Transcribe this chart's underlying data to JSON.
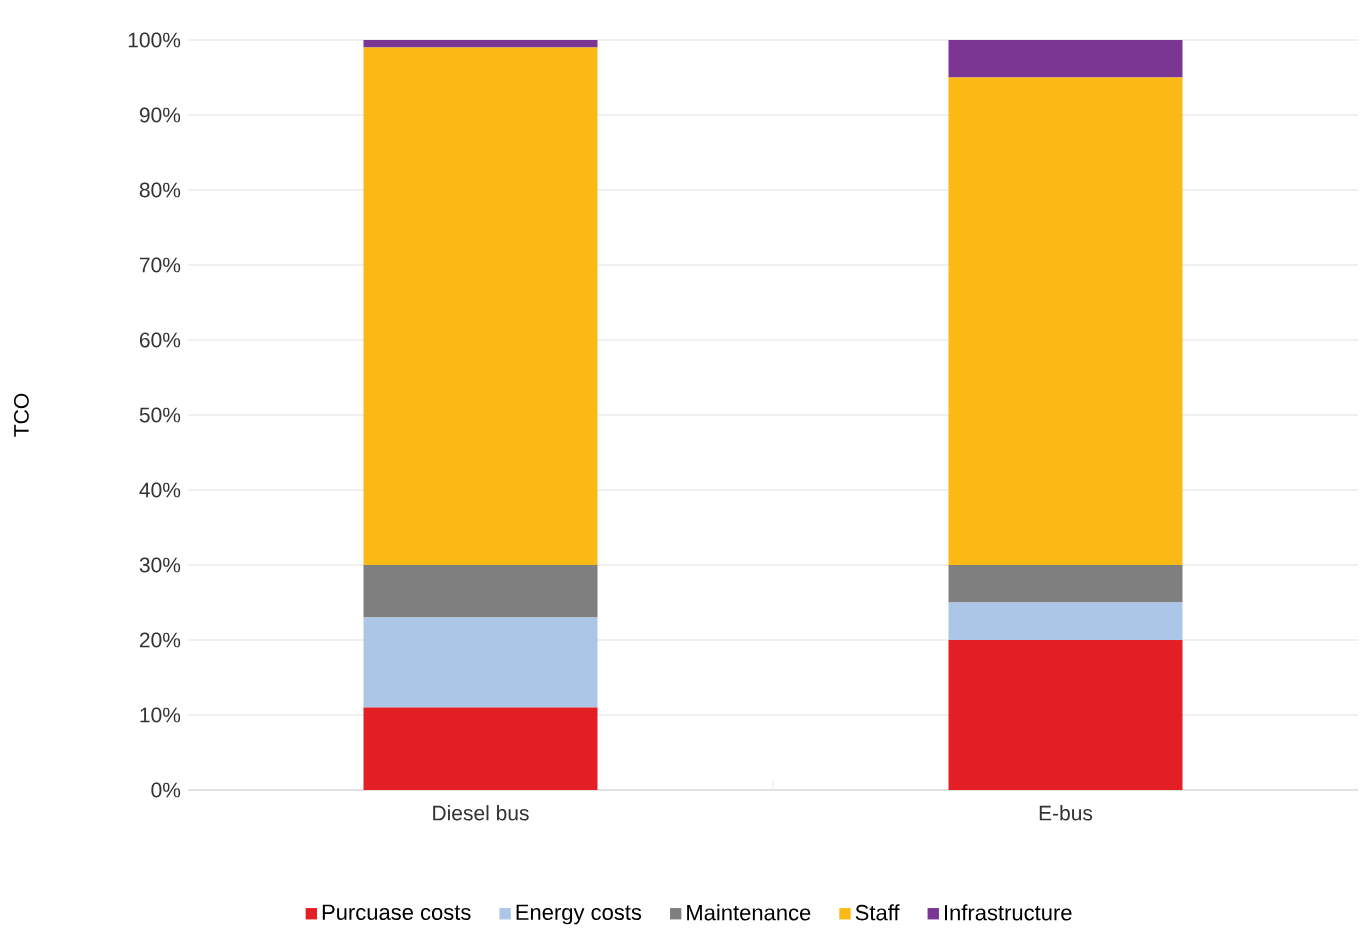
{
  "chart_data": {
    "type": "bar",
    "stacked": true,
    "ylabel": "TCO",
    "categories": [
      "Diesel bus",
      "E-bus"
    ],
    "series": [
      {
        "name": "Purcuase costs",
        "color": "#e31e24",
        "values": [
          11,
          20
        ]
      },
      {
        "name": "Energy costs",
        "color": "#abc6e6",
        "values": [
          12,
          5
        ]
      },
      {
        "name": "Maintenance",
        "color": "#7f7f7f",
        "values": [
          7,
          5
        ]
      },
      {
        "name": "Staff",
        "color": "#fab915",
        "values": [
          69,
          65
        ]
      },
      {
        "name": "Infrastructure",
        "color": "#7b3694",
        "values": [
          1,
          5
        ]
      }
    ],
    "ylim": [
      0,
      100
    ],
    "yticks": [
      {
        "value": 0,
        "label": "0%"
      },
      {
        "value": 10,
        "label": "10%"
      },
      {
        "value": 20,
        "label": "20%"
      },
      {
        "value": 30,
        "label": "30%"
      },
      {
        "value": 40,
        "label": "40%"
      },
      {
        "value": 50,
        "label": "50%"
      },
      {
        "value": 60,
        "label": "60%"
      },
      {
        "value": 70,
        "label": "70%"
      },
      {
        "value": 80,
        "label": "80%"
      },
      {
        "value": 90,
        "label": "90%"
      },
      {
        "value": 100,
        "label": "100%"
      }
    ],
    "grid": "y",
    "legend": "bottom"
  }
}
